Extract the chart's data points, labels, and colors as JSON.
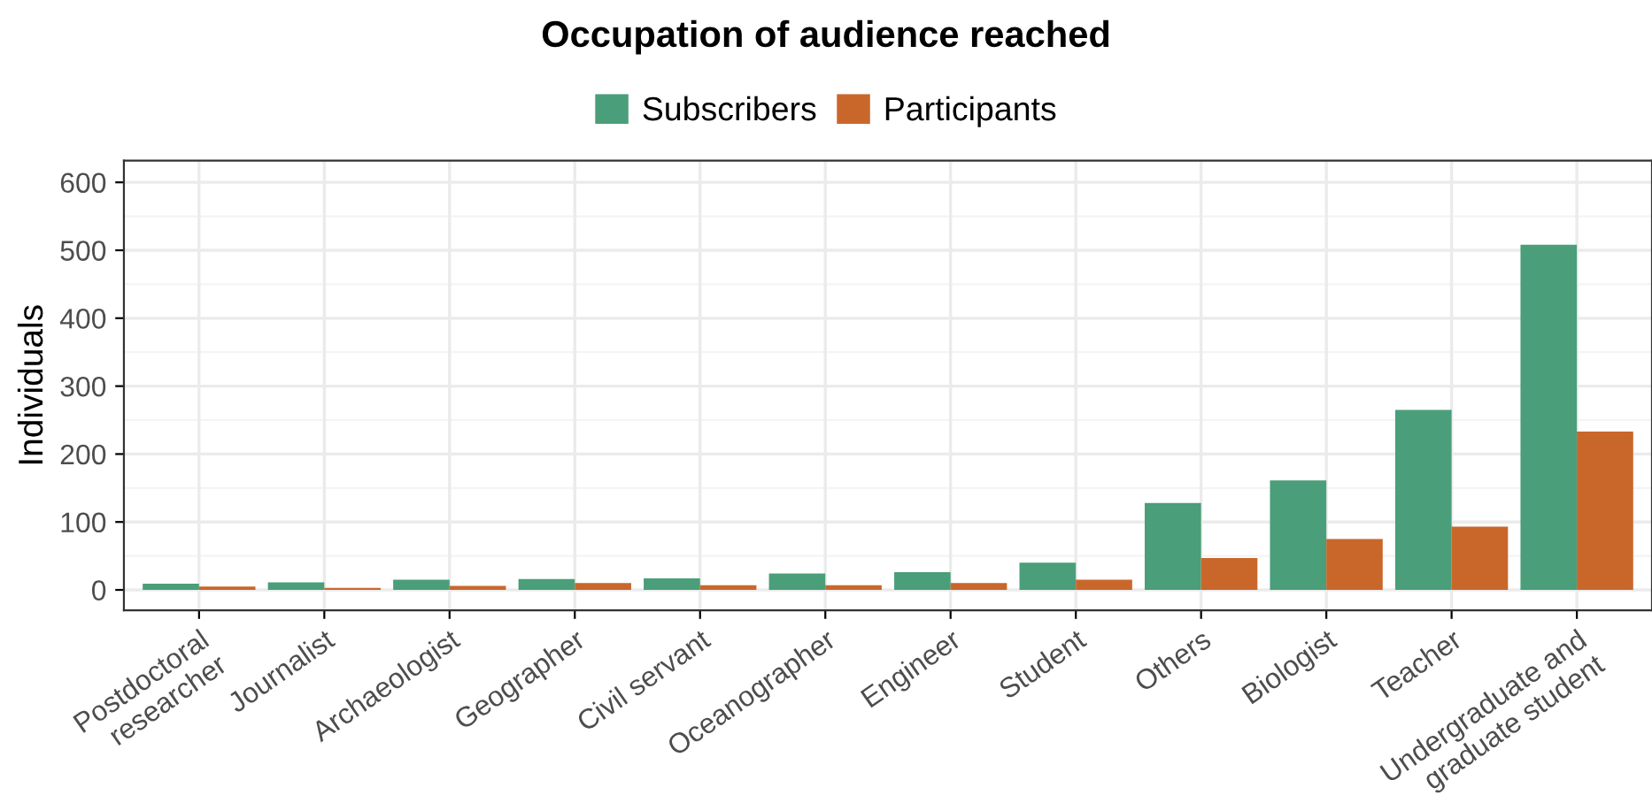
{
  "chart_data": {
    "type": "bar",
    "title": "Occupation of audience reached",
    "ylabel": "Individuals",
    "categories": [
      "Postdoctoral\nresearcher",
      "Journalist",
      "Archaeologist",
      "Geographer",
      "Civil servant",
      "Oceanographer",
      "Engineer",
      "Student",
      "Others",
      "Biologist",
      "Teacher",
      "Undergraduate and\ngraduate student"
    ],
    "series": [
      {
        "name": "Subscribers",
        "color": "#4a9e7a",
        "values": [
          9,
          11,
          15,
          16,
          17,
          24,
          26,
          40,
          128,
          161,
          265,
          508
        ]
      },
      {
        "name": "Participants",
        "color": "#c9672b",
        "values": [
          5,
          3,
          6,
          10,
          7,
          7,
          10,
          15,
          47,
          75,
          93,
          233
        ]
      }
    ],
    "ylim": [
      -30,
      632
    ],
    "yticks": [
      0,
      100,
      200,
      300,
      400,
      500,
      600
    ],
    "grid": true,
    "legend": "top"
  }
}
